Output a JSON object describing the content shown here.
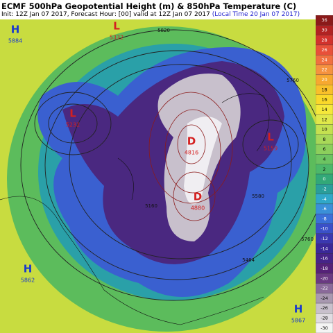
{
  "header": {
    "title": "ECMF 500hPa Geopotential Height (m) & 850hPa Temperature (C)",
    "init": "Init: 12Z Jan 07 2017, Forecast Hour: [00] valid at 12Z Jan 07 2017",
    "local_time": "(Local Time 20 Jan 07 2017)"
  },
  "colorbar": {
    "labels": [
      36,
      30,
      28,
      26,
      24,
      22,
      20,
      18,
      16,
      14,
      12,
      10,
      8,
      6,
      4,
      2,
      0,
      -2,
      -4,
      -6,
      -8,
      -10,
      -12,
      -14,
      -16,
      -18,
      -20,
      -22,
      -24,
      -26,
      -28,
      -30
    ],
    "colors": [
      "#8b1a1a",
      "#b22222",
      "#d2322d",
      "#e8503a",
      "#f07040",
      "#f5923f",
      "#f7a830",
      "#f9c02a",
      "#fad82a",
      "#f5e83a",
      "#e0e84a",
      "#c4e050",
      "#a8d858",
      "#8ccf5c",
      "#6cc462",
      "#4cb86a",
      "#32a878",
      "#2a9e9a",
      "#30a8c8",
      "#3a90d8",
      "#3a70d8",
      "#3a50c8",
      "#3a38b0",
      "#3a2898",
      "#462488",
      "#552278",
      "#6a3a82",
      "#8a6a9a",
      "#a898b0",
      "#c8c0cc",
      "#e0dce2",
      "#f4f4f4"
    ]
  },
  "centers": [
    {
      "symbol": "H",
      "value": "5884"
    },
    {
      "symbol": "L",
      "value": "5332"
    },
    {
      "symbol": "L",
      "value": "5232"
    },
    {
      "symbol": "D",
      "value": "4816"
    },
    {
      "symbol": "D",
      "value": "4880"
    },
    {
      "symbol": "L",
      "value": "5159"
    },
    {
      "symbol": "H",
      "value": "5862"
    },
    {
      "symbol": "H",
      "value": "5867"
    }
  ],
  "contour_labels": [
    "5820",
    "5760",
    "5580",
    "5464",
    "5160",
    "5760"
  ]
}
